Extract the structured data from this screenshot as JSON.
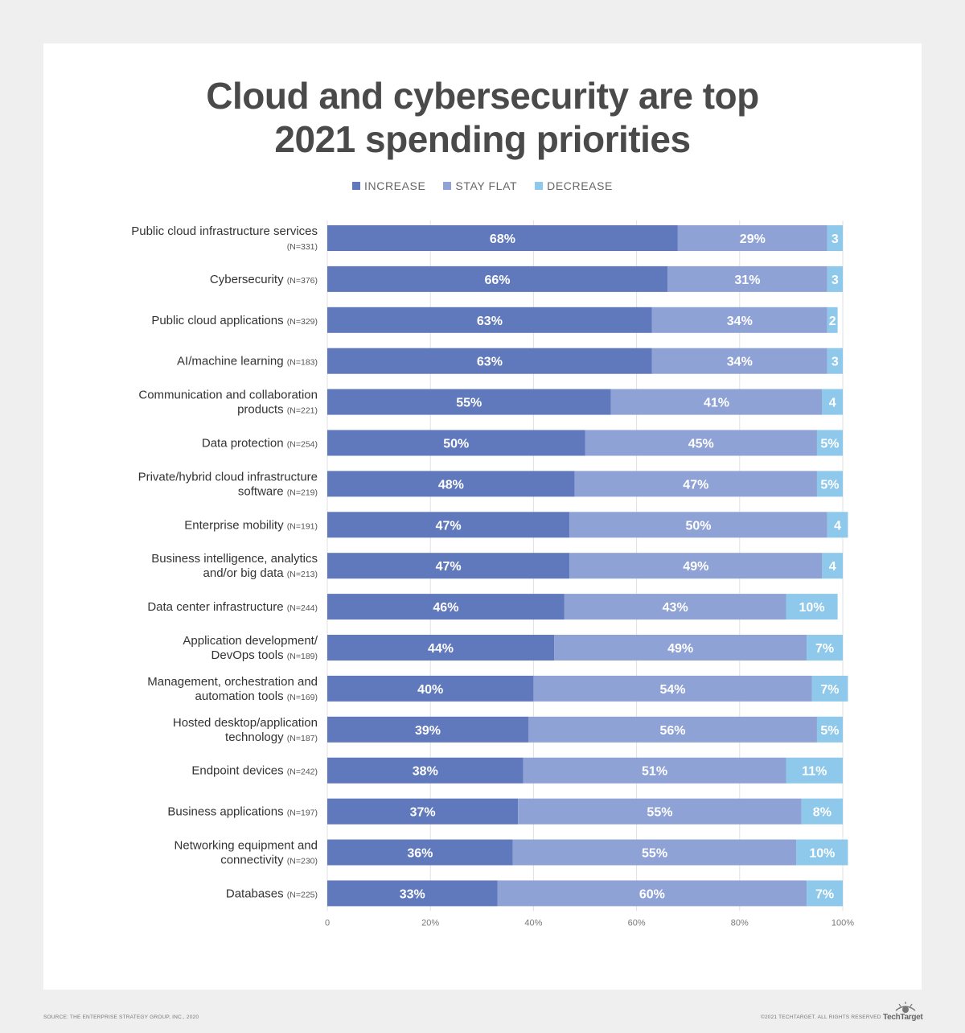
{
  "title_line1": "Cloud and cybersecurity are top",
  "title_line2": "2021 spending priorities",
  "colors": {
    "increase": "#6079bc",
    "stay_flat": "#8fa2d6",
    "decrease": "#8ec8ea",
    "grid": "#e0e0e0",
    "title": "#4a4a4a"
  },
  "legend": [
    {
      "label": "INCREASE",
      "color": "#6079bc"
    },
    {
      "label": "STAY FLAT",
      "color": "#8fa2d6"
    },
    {
      "label": "DECREASE",
      "color": "#8ec8ea"
    }
  ],
  "chart_data": {
    "type": "bar",
    "orientation": "horizontal",
    "stacked": true,
    "xlim": [
      0,
      100
    ],
    "x_ticks": [
      "0",
      "20%",
      "40%",
      "60%",
      "80%",
      "100%"
    ],
    "grid": true,
    "legend_position": "top-center",
    "categories": [
      {
        "line1": "Public cloud infrastructure services",
        "line2": "",
        "n": "(N=331)"
      },
      {
        "line1": "",
        "line2": "Cybersecurity",
        "n": "(N=376)"
      },
      {
        "line1": "",
        "line2": "Public cloud applications",
        "n": "(N=329)"
      },
      {
        "line1": "",
        "line2": "AI/machine learning",
        "n": "(N=183)"
      },
      {
        "line1": "Communication and collaboration",
        "line2": "products",
        "n": "(N=221)"
      },
      {
        "line1": "",
        "line2": "Data protection",
        "n": "(N=254)"
      },
      {
        "line1": "Private/hybrid cloud infrastructure",
        "line2": "software",
        "n": "(N=219)"
      },
      {
        "line1": "",
        "line2": "Enterprise mobility",
        "n": "(N=191)"
      },
      {
        "line1": "Business intelligence, analytics",
        "line2": "and/or big data",
        "n": "(N=213)"
      },
      {
        "line1": "",
        "line2": "Data center infrastructure",
        "n": "(N=244)"
      },
      {
        "line1": "Application development/",
        "line2": "DevOps tools",
        "n": "(N=189)"
      },
      {
        "line1": "Management, orchestration and",
        "line2": "automation tools",
        "n": "(N=169)"
      },
      {
        "line1": "Hosted desktop/application",
        "line2": "technology",
        "n": "(N=187)"
      },
      {
        "line1": "",
        "line2": "Endpoint devices",
        "n": "(N=242)"
      },
      {
        "line1": "",
        "line2": "Business applications",
        "n": "(N=197)"
      },
      {
        "line1": "Networking equipment and",
        "line2": "connectivity",
        "n": "(N=230)"
      },
      {
        "line1": "",
        "line2": "Databases",
        "n": "(N=225)"
      }
    ],
    "series": [
      {
        "name": "INCREASE",
        "values": [
          68,
          66,
          63,
          63,
          55,
          50,
          48,
          47,
          47,
          46,
          44,
          40,
          39,
          38,
          37,
          36,
          33
        ],
        "labels": [
          "68%",
          "66%",
          "63%",
          "63%",
          "55%",
          "50%",
          "48%",
          "47%",
          "47%",
          "46%",
          "44%",
          "40%",
          "39%",
          "38%",
          "37%",
          "36%",
          "33%"
        ]
      },
      {
        "name": "STAY FLAT",
        "values": [
          29,
          31,
          34,
          34,
          41,
          45,
          47,
          50,
          49,
          43,
          49,
          54,
          56,
          51,
          55,
          55,
          60
        ],
        "labels": [
          "29%",
          "31%",
          "34%",
          "34%",
          "41%",
          "45%",
          "47%",
          "50%",
          "49%",
          "43%",
          "49%",
          "54%",
          "56%",
          "51%",
          "55%",
          "55%",
          "60%"
        ]
      },
      {
        "name": "DECREASE",
        "values": [
          3,
          3,
          2,
          3,
          4,
          5,
          5,
          4,
          4,
          10,
          7,
          7,
          5,
          11,
          8,
          10,
          7
        ],
        "labels": [
          "3",
          "3",
          "2",
          "3",
          "4",
          "5%",
          "5%",
          "4",
          "4",
          "10%",
          "7%",
          "7%",
          "5%",
          "11%",
          "8%",
          "10%",
          "7%"
        ]
      }
    ]
  },
  "footer": {
    "source": "SOURCE: THE ENTERPRISE STRATEGY GROUP, INC., 2020",
    "copyright": "©2021 TECHTARGET. ALL RIGHTS RESERVED",
    "logo_text": "TechTarget"
  }
}
